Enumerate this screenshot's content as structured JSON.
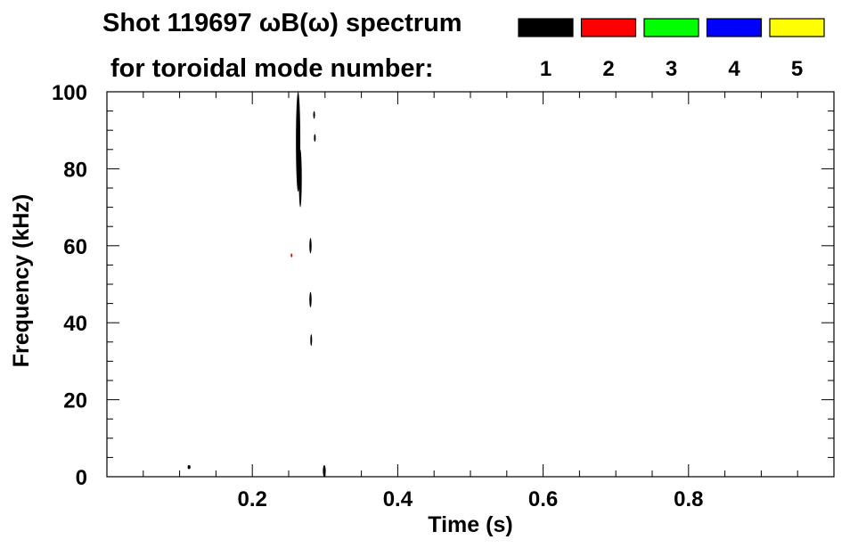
{
  "chart_data": {
    "type": "heatmap",
    "title_line1": "Shot 119697 ωB(ω) spectrum",
    "title_line2": "for toroidal mode number:",
    "xlabel": "Time (s)",
    "ylabel": "Frequency (kHz)",
    "xlim": [
      0.0,
      1.0
    ],
    "ylim": [
      0,
      100
    ],
    "x_ticks": [
      0.2,
      0.4,
      0.6,
      0.8
    ],
    "y_ticks": [
      0,
      20,
      40,
      60,
      80,
      100
    ],
    "grid": false,
    "legend": {
      "placement": "top-right",
      "entries": [
        {
          "label": "1",
          "color": "#000000"
        },
        {
          "label": "2",
          "color": "#ff0000"
        },
        {
          "label": "3",
          "color": "#00ff00"
        },
        {
          "label": "4",
          "color": "#0000ff"
        },
        {
          "label": "5",
          "color": "#ffff00"
        }
      ]
    },
    "features": [
      {
        "mode": 1,
        "t": 0.263,
        "f0": 74,
        "f1": 100,
        "w": 0.006
      },
      {
        "mode": 1,
        "t": 0.266,
        "f0": 70,
        "f1": 85,
        "w": 0.004
      },
      {
        "mode": 1,
        "t": 0.285,
        "f0": 93,
        "f1": 95,
        "w": 0.002
      },
      {
        "mode": 1,
        "t": 0.286,
        "f0": 87,
        "f1": 89,
        "w": 0.002
      },
      {
        "mode": 1,
        "t": 0.28,
        "f0": 58,
        "f1": 62,
        "w": 0.003
      },
      {
        "mode": 1,
        "t": 0.28,
        "f0": 44,
        "f1": 48,
        "w": 0.003
      },
      {
        "mode": 1,
        "t": 0.281,
        "f0": 34,
        "f1": 37,
        "w": 0.002
      },
      {
        "mode": 1,
        "t": 0.299,
        "f0": 0,
        "f1": 3,
        "w": 0.004
      },
      {
        "mode": 1,
        "t": 0.113,
        "f0": 2,
        "f1": 3,
        "w": 0.004
      },
      {
        "mode": 2,
        "t": 0.254,
        "f0": 57,
        "f1": 58,
        "w": 0.002
      }
    ]
  }
}
